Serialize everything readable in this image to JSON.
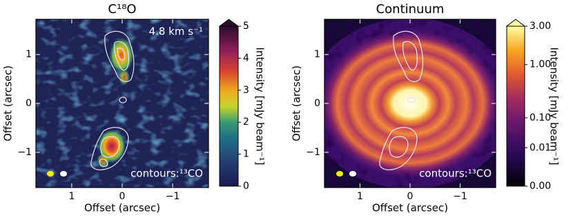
{
  "chart_data": [
    {
      "type": "image",
      "title": "C¹⁸O",
      "xlabel": "Offset (arcsec)",
      "ylabel": "Offset (arcsec)",
      "xlim": [
        1.71,
        -1.71
      ],
      "ylim": [
        -1.72,
        1.72
      ],
      "xticks": [
        1,
        0,
        {
          "value": -1,
          "label": "−1"
        }
      ],
      "yticks": [
        {
          "value": -1,
          "label": "−1"
        },
        0,
        1
      ],
      "annotations": [
        "4.8 km s⁻¹",
        "contours:¹³CO"
      ],
      "colorbar": {
        "label": "Intensity [mJy beam⁻¹]",
        "lim": [
          0,
          5
        ],
        "ticks": [
          0,
          1,
          2,
          3,
          4,
          5
        ],
        "scale": "linear"
      }
    },
    {
      "type": "image",
      "title": "Continuum",
      "xlabel": "Offset (arcsec)",
      "ylabel": "Offset (arcsec)",
      "xlim": [
        1.71,
        -1.71
      ],
      "ylim": [
        -1.72,
        1.72
      ],
      "xticks": [
        1,
        0,
        {
          "value": -1,
          "label": "−1"
        }
      ],
      "yticks": [
        {
          "value": -1,
          "label": "−1"
        },
        0,
        1
      ],
      "annotations": [
        "contours:¹³CO"
      ],
      "colorbar": {
        "label": "Intensity [mJy beam⁻¹]",
        "lim": [
          0,
          3
        ],
        "ticks": [
          {
            "value": 0,
            "label": "0.00"
          },
          {
            "value": 0.01,
            "label": "0.01"
          },
          {
            "value": 0.1,
            "label": "0.10"
          },
          {
            "value": 1,
            "label": "1.00"
          },
          {
            "value": 3,
            "label": "3.00"
          }
        ],
        "scale": "power",
        "gamma": 0.25
      }
    }
  ]
}
